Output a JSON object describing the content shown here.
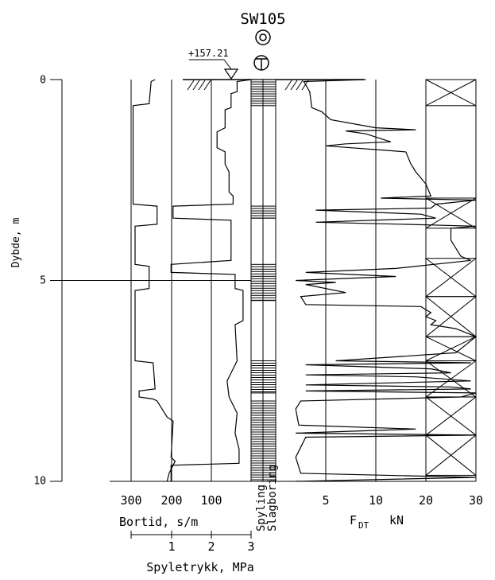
{
  "chart_data": {
    "type": "line",
    "title": "SW105",
    "elevation_label": "+157.21",
    "depth_axis": {
      "label": "Dybde, m",
      "ticks": [
        "0",
        "5",
        "10"
      ],
      "range": [
        0,
        10
      ],
      "reversed": true
    },
    "bortid_axis": {
      "label": "Bortid, s/m",
      "ticks": [
        "300",
        "200",
        "100"
      ]
    },
    "spyletrykk_axis": {
      "label": "Spyletrykk, MPa",
      "ticks": [
        "1",
        "2",
        "3"
      ]
    },
    "column_labels": [
      "Spyling",
      "Slagboring"
    ],
    "fdt_axis": {
      "label_main": "F",
      "label_sub": "DT",
      "unit": "kN",
      "ticks": [
        "5",
        "10",
        "20",
        "30"
      ]
    },
    "bortid_profile": [
      [
        0.0,
        240
      ],
      [
        0.05,
        250
      ],
      [
        0.6,
        255
      ],
      [
        0.65,
        295
      ],
      [
        3.1,
        295
      ],
      [
        3.15,
        235
      ],
      [
        3.6,
        235
      ],
      [
        3.65,
        290
      ],
      [
        4.6,
        290
      ],
      [
        4.65,
        255
      ],
      [
        5.2,
        255
      ],
      [
        5.25,
        290
      ],
      [
        7.0,
        290
      ],
      [
        7.05,
        245
      ],
      [
        7.7,
        240
      ],
      [
        7.75,
        280
      ],
      [
        7.9,
        280
      ],
      [
        7.95,
        245
      ],
      [
        8.0,
        235
      ],
      [
        8.4,
        210
      ],
      [
        8.5,
        195
      ],
      [
        9.4,
        200
      ],
      [
        9.5,
        190
      ],
      [
        9.8,
        205
      ],
      [
        10.0,
        210
      ]
    ],
    "spyletrykk_profile": [
      [
        0.0,
        3.0
      ],
      [
        0.05,
        2.65
      ],
      [
        0.3,
        2.65
      ],
      [
        0.35,
        2.5
      ],
      [
        0.7,
        2.5
      ],
      [
        0.75,
        2.35
      ],
      [
        1.2,
        2.35
      ],
      [
        1.3,
        2.15
      ],
      [
        1.7,
        2.15
      ],
      [
        1.8,
        2.35
      ],
      [
        2.1,
        2.35
      ],
      [
        2.3,
        2.45
      ],
      [
        2.8,
        2.45
      ],
      [
        2.9,
        2.55
      ],
      [
        3.1,
        2.55
      ],
      [
        3.15,
        1.05
      ],
      [
        3.45,
        1.05
      ],
      [
        3.5,
        2.5
      ],
      [
        4.5,
        2.5
      ],
      [
        4.6,
        1.0
      ],
      [
        4.8,
        1.0
      ],
      [
        4.85,
        2.6
      ],
      [
        5.2,
        2.6
      ],
      [
        5.25,
        2.8
      ],
      [
        6.0,
        2.8
      ],
      [
        6.1,
        2.6
      ],
      [
        7.0,
        2.65
      ],
      [
        7.5,
        2.4
      ],
      [
        7.9,
        2.45
      ],
      [
        8.3,
        2.65
      ],
      [
        8.8,
        2.6
      ],
      [
        9.2,
        2.7
      ],
      [
        9.55,
        2.7
      ],
      [
        9.6,
        1.0
      ],
      [
        10.0,
        1.0
      ]
    ],
    "spyling_intervals": [
      [
        0.0,
        0.65
      ],
      [
        3.15,
        3.45
      ],
      [
        4.6,
        5.5
      ],
      [
        7.0,
        7.8
      ],
      [
        8.0,
        10.0
      ]
    ],
    "slagboring_intervals": [
      [
        0.0,
        0.65
      ],
      [
        3.15,
        3.45
      ],
      [
        4.6,
        5.5
      ],
      [
        7.0,
        7.8
      ],
      [
        8.0,
        10.0
      ]
    ],
    "fdt_profile": [
      [
        0.0,
        9.0
      ],
      [
        0.05,
        2.8
      ],
      [
        0.3,
        3.4
      ],
      [
        0.7,
        3.6
      ],
      [
        0.8,
        4.6
      ],
      [
        1.0,
        5.5
      ],
      [
        1.2,
        10.0
      ],
      [
        1.25,
        18.0
      ],
      [
        1.28,
        7.0
      ],
      [
        1.35,
        9.0
      ],
      [
        1.55,
        13.0
      ],
      [
        1.6,
        7.0
      ],
      [
        1.65,
        5.0
      ],
      [
        1.8,
        16.0
      ],
      [
        2.1,
        17.0
      ],
      [
        2.3,
        18.0
      ],
      [
        2.6,
        20.0
      ],
      [
        2.9,
        21.0
      ],
      [
        2.95,
        11.0
      ],
      [
        3.0,
        30.0
      ],
      [
        3.1,
        22.0
      ],
      [
        3.2,
        21.0
      ],
      [
        3.25,
        4.0
      ],
      [
        3.35,
        19.0
      ],
      [
        3.45,
        22.0
      ],
      [
        3.55,
        4.0
      ],
      [
        3.6,
        15.0
      ],
      [
        3.65,
        30.0
      ],
      [
        3.7,
        25.0
      ],
      [
        4.0,
        25.0
      ],
      [
        4.4,
        27.0
      ],
      [
        4.5,
        29.0
      ],
      [
        4.7,
        14.0
      ],
      [
        4.8,
        3.0
      ],
      [
        4.9,
        14.0
      ],
      [
        5.0,
        2.0
      ],
      [
        5.05,
        6.0
      ],
      [
        5.1,
        3.0
      ],
      [
        5.3,
        7.0
      ],
      [
        5.4,
        2.5
      ],
      [
        5.6,
        3.0
      ],
      [
        5.65,
        19.0
      ],
      [
        5.8,
        21.0
      ],
      [
        5.9,
        20.0
      ],
      [
        6.0,
        22.0
      ],
      [
        6.1,
        21.0
      ],
      [
        6.2,
        26.0
      ],
      [
        6.4,
        30.0
      ],
      [
        6.6,
        28.0
      ],
      [
        6.8,
        26.0
      ],
      [
        7.0,
        6.0
      ],
      [
        7.05,
        29.0
      ],
      [
        7.1,
        3.0
      ],
      [
        7.2,
        21.0
      ],
      [
        7.3,
        25.0
      ],
      [
        7.35,
        3.0
      ],
      [
        7.4,
        18.0
      ],
      [
        7.5,
        29.0
      ],
      [
        7.6,
        3.0
      ],
      [
        7.65,
        25.0
      ],
      [
        7.7,
        29.0
      ],
      [
        7.75,
        3.0
      ],
      [
        7.8,
        30.0
      ],
      [
        7.9,
        27.0
      ],
      [
        8.0,
        2.5
      ],
      [
        8.2,
        2.0
      ],
      [
        8.6,
        2.3
      ],
      [
        8.7,
        18.0
      ],
      [
        8.8,
        2.0
      ],
      [
        8.85,
        30.0
      ],
      [
        8.9,
        3.0
      ],
      [
        9.4,
        2.0
      ],
      [
        9.8,
        2.5
      ],
      [
        9.9,
        30.0
      ],
      [
        10.0,
        2.0
      ]
    ],
    "fdt_crossed_intervals": [
      [
        0.0,
        0.65
      ],
      [
        2.95,
        3.7
      ],
      [
        4.45,
        5.4
      ],
      [
        5.4,
        6.4
      ],
      [
        6.4,
        7.0
      ],
      [
        7.0,
        7.9
      ],
      [
        7.9,
        8.85
      ],
      [
        8.85,
        9.85
      ]
    ]
  }
}
